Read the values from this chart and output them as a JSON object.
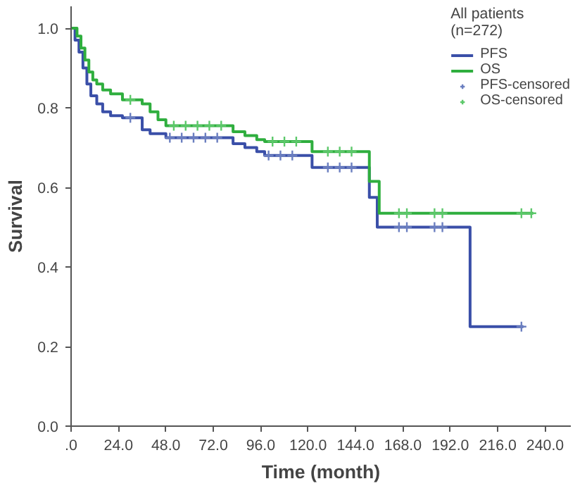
{
  "chart_data": {
    "type": "step",
    "xlabel": "Time (month)",
    "ylabel": "Survival",
    "legend_title": "All patients\n(n=272)",
    "legend": "top right",
    "grid": false,
    "line_style": "solid",
    "xlim": [
      0,
      253
    ],
    "ylim": [
      0,
      1.055
    ],
    "xticks": [
      {
        "value": 0,
        "label": ".0"
      },
      {
        "value": 24,
        "label": "24.0"
      },
      {
        "value": 48,
        "label": "48.0"
      },
      {
        "value": 72,
        "label": "72.0"
      },
      {
        "value": 96,
        "label": "96.0"
      },
      {
        "value": 120,
        "label": "120.0"
      },
      {
        "value": 144,
        "label": "144.0"
      },
      {
        "value": 168,
        "label": "168.0"
      },
      {
        "value": 192,
        "label": "192.0"
      },
      {
        "value": 216,
        "label": "216.0"
      },
      {
        "value": 240,
        "label": "240.0"
      }
    ],
    "yticks": [
      {
        "value": 0,
        "label": "0.0"
      },
      0.2,
      0.4,
      0.6,
      0.8,
      {
        "value": 1,
        "label": "1.0"
      }
    ],
    "series": [
      {
        "name": "PFS",
        "color": "#3a4fa8",
        "x": [
          0,
          2,
          4,
          6,
          8,
          10,
          13,
          16,
          20,
          26,
          36,
          40,
          48,
          82,
          88,
          94,
          98,
          122,
          151,
          155,
          202,
          229
        ],
        "values": [
          1.0,
          0.97,
          0.94,
          0.9,
          0.86,
          0.83,
          0.81,
          0.79,
          0.78,
          0.775,
          0.745,
          0.735,
          0.725,
          0.71,
          0.7,
          0.69,
          0.68,
          0.65,
          0.575,
          0.5,
          0.25,
          0.25
        ]
      },
      {
        "name": "OS",
        "color": "#2fae3e",
        "x": [
          0,
          3,
          5,
          7,
          9,
          11,
          13,
          16,
          20,
          26,
          36,
          40,
          44,
          48,
          82,
          88,
          94,
          98,
          122,
          151,
          156,
          234
        ],
        "values": [
          1.0,
          0.98,
          0.95,
          0.92,
          0.89,
          0.87,
          0.86,
          0.845,
          0.835,
          0.82,
          0.81,
          0.79,
          0.77,
          0.755,
          0.74,
          0.73,
          0.72,
          0.715,
          0.69,
          0.615,
          0.535,
          0.535
        ]
      },
      {
        "name": "PFS-censored",
        "color": "#6b7fc0",
        "type": "scatter",
        "marker": "cross",
        "x": [
          30,
          50,
          56,
          62,
          68,
          74,
          100,
          106,
          112,
          130,
          136,
          142,
          166,
          170,
          184,
          188,
          228
        ],
        "values": [
          0.775,
          0.725,
          0.725,
          0.725,
          0.725,
          0.725,
          0.68,
          0.68,
          0.68,
          0.65,
          0.65,
          0.65,
          0.5,
          0.5,
          0.5,
          0.5,
          0.25
        ]
      },
      {
        "name": "OS-censored",
        "color": "#5cc86a",
        "type": "scatter",
        "marker": "cross",
        "x": [
          30,
          52,
          58,
          64,
          70,
          76,
          102,
          108,
          114,
          130,
          136,
          142,
          166,
          170,
          184,
          188,
          228,
          233
        ],
        "values": [
          0.82,
          0.755,
          0.755,
          0.755,
          0.755,
          0.755,
          0.715,
          0.715,
          0.715,
          0.69,
          0.69,
          0.69,
          0.535,
          0.535,
          0.535,
          0.535,
          0.535,
          0.535
        ]
      }
    ]
  }
}
